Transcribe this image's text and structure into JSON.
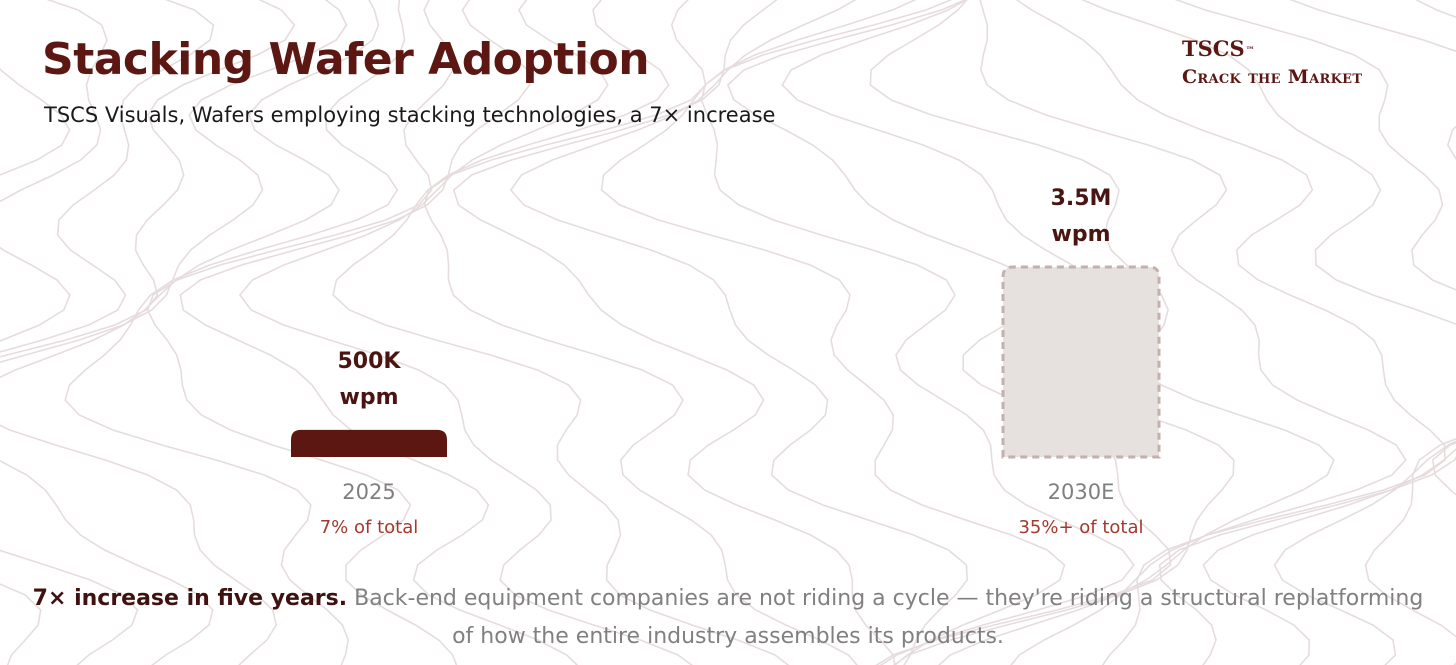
{
  "header": {
    "title": "Stacking Wafer Adoption",
    "subtitle": "TSCS Visuals, Wafers employing stacking technologies, a 7× increase"
  },
  "brand": {
    "name": "TSCS",
    "tm": "™",
    "tagline": "Crack the Market"
  },
  "chart_data": {
    "type": "bar",
    "categories": [
      "2025",
      "2030E"
    ],
    "values": [
      500000,
      3500000
    ],
    "value_labels": [
      [
        "500K",
        "wpm"
      ],
      [
        "3.5M",
        "wpm"
      ]
    ],
    "share_labels": [
      "7% of total",
      "35%+ of total"
    ],
    "projected": [
      false,
      true
    ],
    "title": "Stacking Wafer Adoption",
    "xlabel": "",
    "ylabel": "",
    "grid": false,
    "legend": "none"
  },
  "footnote": {
    "bold": "7× increase in five years.",
    "text": "Back-end equipment companies are not riding a cycle — they're riding a structural replatforming of how the entire industry assembles its products."
  },
  "colors": {
    "title": "#5c1713",
    "text": "#1a1a1a",
    "bar_actual": "#5c1713",
    "bar_projected_fill": "#e6e0df",
    "bar_projected_stroke": "#c3b1ae",
    "value_label": "#4a1511",
    "year_label": "#7f7f7f",
    "share_label": "#a23a2e",
    "footnote_bold": "#3f1210",
    "footnote_text": "#808080",
    "contour_lines": "#e6dcde"
  }
}
